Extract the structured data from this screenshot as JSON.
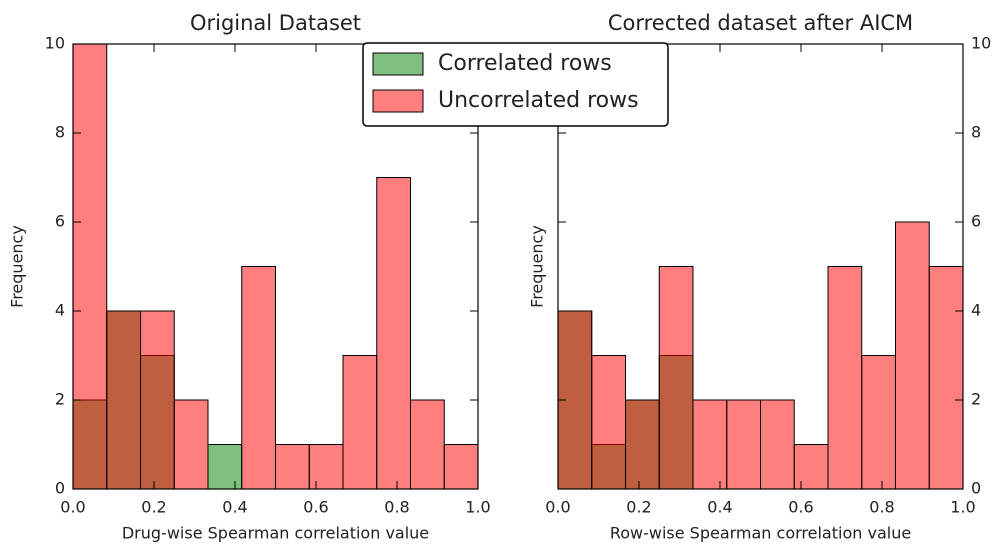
{
  "chart_data": [
    {
      "type": "histogram",
      "title": "Original Dataset",
      "xlabel": "Drug-wise Spearman correlation value",
      "ylabel": "Frequency",
      "bins": [
        0,
        0.0833,
        0.1667,
        0.25,
        0.3333,
        0.4167,
        0.5,
        0.5833,
        0.6667,
        0.75,
        0.8333,
        0.9167,
        1.0
      ],
      "series": [
        {
          "name": "Correlated rows",
          "color": "#008000",
          "values": [
            2,
            4,
            3,
            0,
            1,
            0,
            0,
            0,
            0,
            0,
            0,
            0
          ]
        },
        {
          "name": "Uncorrelated rows",
          "color": "#ff0000",
          "values": [
            10,
            4,
            4,
            2,
            0,
            5,
            1,
            1,
            3,
            7,
            2,
            1
          ]
        }
      ],
      "xlim": [
        0,
        1.0
      ],
      "xticks": [
        {
          "value": 0,
          "label": "0.0"
        },
        0.2,
        0.4,
        0.6,
        0.8,
        {
          "value": 1.0,
          "label": "1.0"
        }
      ],
      "ylim": [
        0,
        10
      ],
      "yticks": [
        0,
        2,
        4,
        6,
        8,
        10
      ],
      "yaxis_side": "left"
    },
    {
      "type": "histogram",
      "title": "Corrected dataset after AICM",
      "xlabel": "Row-wise Spearman correlation value",
      "ylabel": "Frequency",
      "bins": [
        0,
        0.0833,
        0.1667,
        0.25,
        0.3333,
        0.4167,
        0.5,
        0.5833,
        0.6667,
        0.75,
        0.8333,
        0.9167,
        1.0
      ],
      "series": [
        {
          "color": "#008000",
          "values": [
            4,
            1,
            2,
            3,
            0,
            0,
            0,
            0,
            0,
            0,
            0,
            0
          ]
        },
        {
          "color": "#ff0000",
          "values": [
            4,
            3,
            2,
            5,
            2,
            2,
            2,
            1,
            5,
            3,
            6,
            5
          ]
        }
      ],
      "xlim": [
        0,
        1.0
      ],
      "xticks": [
        {
          "value": 0,
          "label": "0.0"
        },
        0.2,
        0.4,
        0.6,
        0.8,
        {
          "value": 1.0,
          "label": "1.0"
        }
      ],
      "ylim": [
        0,
        10
      ],
      "yticks": [
        0,
        2,
        4,
        6,
        8,
        10
      ],
      "yaxis_side": "right"
    }
  ]
}
